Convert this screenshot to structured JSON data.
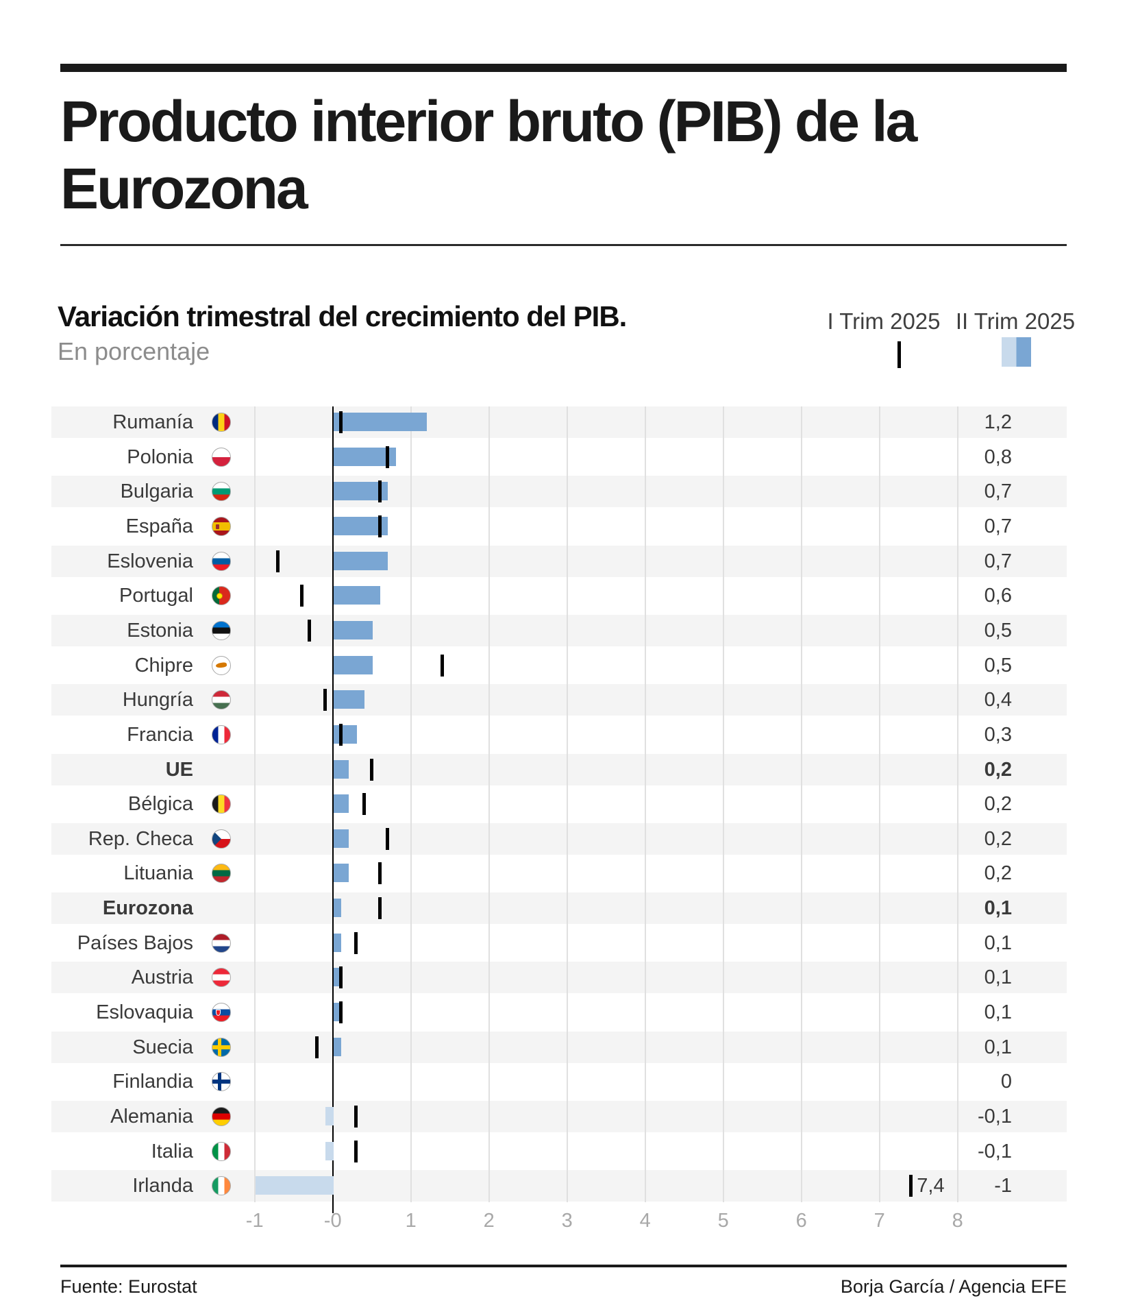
{
  "header": {
    "title_line1": "Producto interior bruto (PIB) de la",
    "title_line2": "Eurozona"
  },
  "subtitle": {
    "line1": "Variación trimestral del crecimiento del PIB.",
    "line2": "En porcentaje"
  },
  "legend": {
    "q1_label": "I Trim 2025",
    "q2_label": "II Trim 2025"
  },
  "footer": {
    "source": "Fuente: Eurostat",
    "credit": "Borja García / Agencia EFE"
  },
  "colors": {
    "bar_positive": "#7aa6d3",
    "bar_negative": "#c8daec",
    "tick": "#000000",
    "stripe": "#f4f4f4",
    "gridline": "#e0e0e0",
    "zero_line": "#000000",
    "axis_text": "#a8a8a8",
    "text": "#3a3a3a"
  },
  "chart_data": {
    "type": "bar",
    "orientation": "horizontal",
    "title": "Variación trimestral del crecimiento del PIB.",
    "unit": "En porcentaje",
    "xlim": [
      -1,
      8
    ],
    "grid": true,
    "legend_position": "top-right",
    "series": [
      {
        "name": "I Trim 2025",
        "style": "black-tick"
      },
      {
        "name": "II Trim 2025",
        "style": "blue-bar"
      }
    ],
    "axis_ticks": [
      {
        "label": "-1",
        "v": -1
      },
      {
        "label": "-0",
        "v": 0
      },
      {
        "label": "1",
        "v": 1
      },
      {
        "label": "2",
        "v": 2
      },
      {
        "label": "3",
        "v": 3
      },
      {
        "label": "4",
        "v": 4
      },
      {
        "label": "5",
        "v": 5
      },
      {
        "label": "6",
        "v": 6
      },
      {
        "label": "7",
        "v": 7
      },
      {
        "label": "8",
        "v": 8
      }
    ],
    "countries": [
      {
        "label": "Rumanía",
        "flag": "ro",
        "q1": 0.1,
        "q2": 1.2,
        "value_label": "1,2",
        "bold": false
      },
      {
        "label": "Polonia",
        "flag": "pl",
        "q1": 0.7,
        "q2": 0.8,
        "value_label": "0,8",
        "bold": false
      },
      {
        "label": "Bulgaria",
        "flag": "bg",
        "q1": 0.6,
        "q2": 0.7,
        "value_label": "0,7",
        "bold": false
      },
      {
        "label": "España",
        "flag": "es",
        "q1": 0.6,
        "q2": 0.7,
        "value_label": "0,7",
        "bold": false
      },
      {
        "label": "Eslovenia",
        "flag": "si",
        "q1": -0.7,
        "q2": 0.7,
        "value_label": "0,7",
        "bold": false
      },
      {
        "label": "Portugal",
        "flag": "pt",
        "q1": -0.4,
        "q2": 0.6,
        "value_label": "0,6",
        "bold": false
      },
      {
        "label": "Estonia",
        "flag": "ee",
        "q1": -0.3,
        "q2": 0.5,
        "value_label": "0,5",
        "bold": false
      },
      {
        "label": "Chipre",
        "flag": "cy",
        "q1": 1.4,
        "q2": 0.5,
        "value_label": "0,5",
        "bold": false
      },
      {
        "label": "Hungría",
        "flag": "hu",
        "q1": -0.1,
        "q2": 0.4,
        "value_label": "0,4",
        "bold": false
      },
      {
        "label": "Francia",
        "flag": "fr",
        "q1": 0.1,
        "q2": 0.3,
        "value_label": "0,3",
        "bold": false
      },
      {
        "label": "UE",
        "flag": null,
        "q1": 0.5,
        "q2": 0.2,
        "value_label": "0,2",
        "bold": true
      },
      {
        "label": "Bélgica",
        "flag": "be",
        "q1": 0.4,
        "q2": 0.2,
        "value_label": "0,2",
        "bold": false
      },
      {
        "label": "Rep. Checa",
        "flag": "cz",
        "q1": 0.7,
        "q2": 0.2,
        "value_label": "0,2",
        "bold": false
      },
      {
        "label": "Lituania",
        "flag": "lt",
        "q1": 0.6,
        "q2": 0.2,
        "value_label": "0,2",
        "bold": false
      },
      {
        "label": "Eurozona",
        "flag": null,
        "q1": 0.6,
        "q2": 0.1,
        "value_label": "0,1",
        "bold": true
      },
      {
        "label": "Países Bajos",
        "flag": "nl",
        "q1": 0.3,
        "q2": 0.1,
        "value_label": "0,1",
        "bold": false
      },
      {
        "label": "Austria",
        "flag": "at",
        "q1": 0.1,
        "q2": 0.1,
        "value_label": "0,1",
        "bold": false
      },
      {
        "label": "Eslovaquia",
        "flag": "sk",
        "q1": 0.1,
        "q2": 0.1,
        "value_label": "0,1",
        "bold": false
      },
      {
        "label": "Suecia",
        "flag": "se",
        "q1": -0.2,
        "q2": 0.1,
        "value_label": "0,1",
        "bold": false
      },
      {
        "label": "Finlandia",
        "flag": "fi",
        "q1": null,
        "q2": 0,
        "value_label": "0",
        "bold": false
      },
      {
        "label": "Alemania",
        "flag": "de",
        "q1": 0.3,
        "q2": -0.1,
        "value_label": "-0,1",
        "bold": false
      },
      {
        "label": "Italia",
        "flag": "it",
        "q1": 0.3,
        "q2": -0.1,
        "value_label": "-0,1",
        "bold": false
      },
      {
        "label": "Irlanda",
        "flag": "ie",
        "q1": 7.4,
        "q2": -1,
        "value_label": "-1",
        "bold": false,
        "q1_annotation": "7,4"
      }
    ]
  }
}
